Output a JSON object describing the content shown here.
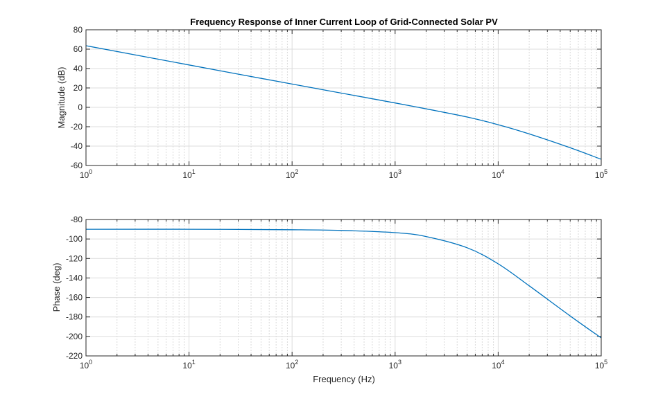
{
  "chart_data": [
    {
      "type": "line",
      "title": "Frequency Response of Inner Current Loop of Grid-Connected Solar PV",
      "xlabel": "",
      "ylabel": "Magnitude (dB)",
      "xscale": "log",
      "xlim": [
        1,
        100000
      ],
      "ylim": [
        -60,
        80
      ],
      "yticks": [
        -60,
        -40,
        -20,
        0,
        20,
        40,
        60,
        80
      ],
      "xtick_labels": [
        [
          "10",
          "0"
        ],
        [
          "10",
          "1"
        ],
        [
          "10",
          "2"
        ],
        [
          "10",
          "3"
        ],
        [
          "10",
          "4"
        ],
        [
          "10",
          "5"
        ]
      ],
      "grid": true,
      "color": "#0072BD",
      "x": [
        1,
        10,
        100,
        1000,
        2000,
        5000,
        10000,
        20000,
        50000,
        100000
      ],
      "y": [
        63.6,
        43.7,
        24,
        4.5,
        -1.6,
        -10,
        -17.9,
        -27.4,
        -41.7,
        -53.6
      ]
    },
    {
      "type": "line",
      "title": "",
      "xlabel": "Frequency (Hz)",
      "ylabel": "Phase (deg)",
      "xscale": "log",
      "xlim": [
        1,
        100000
      ],
      "ylim": [
        -220,
        -80
      ],
      "yticks": [
        -220,
        -200,
        -180,
        -160,
        -140,
        -120,
        -100,
        -80
      ],
      "xtick_labels": [
        [
          "10",
          "0"
        ],
        [
          "10",
          "1"
        ],
        [
          "10",
          "2"
        ],
        [
          "10",
          "3"
        ],
        [
          "10",
          "4"
        ],
        [
          "10",
          "5"
        ]
      ],
      "grid": true,
      "color": "#0072BD",
      "x": [
        1,
        10,
        100,
        300,
        1000,
        2000,
        5000,
        10000,
        20000,
        50000,
        100000
      ],
      "y": [
        -90,
        -90,
        -90.5,
        -91.2,
        -93.5,
        -97.5,
        -109,
        -125.5,
        -148,
        -179,
        -201.5
      ]
    }
  ]
}
